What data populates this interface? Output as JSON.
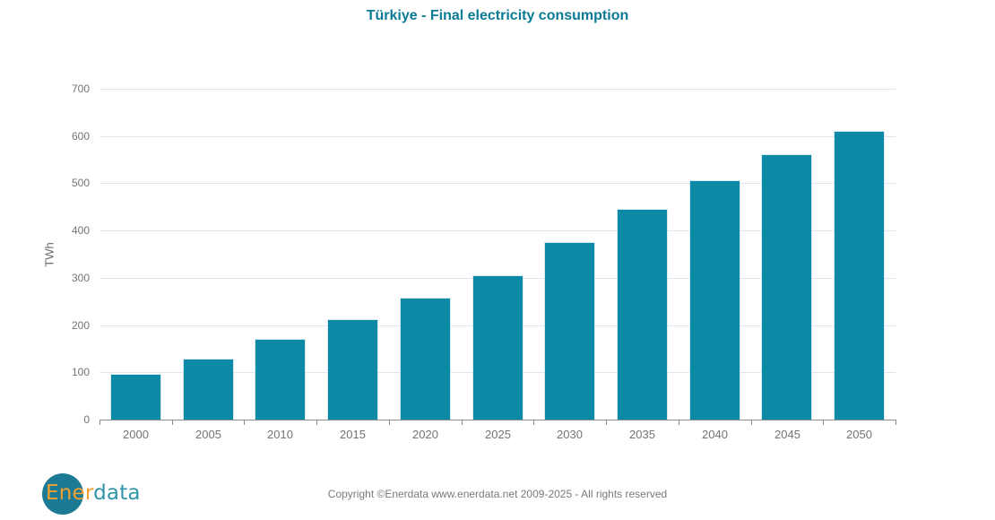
{
  "chart_data": {
    "type": "bar",
    "title": "Türkiye - Final electricity consumption",
    "categories": [
      "2000",
      "2005",
      "2010",
      "2015",
      "2020",
      "2025",
      "2030",
      "2035",
      "2040",
      "2045",
      "2050"
    ],
    "values": [
      96,
      129,
      170,
      213,
      258,
      306,
      376,
      446,
      507,
      562,
      610
    ],
    "xlabel": "",
    "ylabel": "TWh",
    "ylim": [
      0,
      700
    ],
    "ytick_interval": 100,
    "grid": true,
    "legend": "none",
    "bar_color": "#0a8aa6"
  },
  "colors": {
    "bar": "#0a8aa6",
    "bar_border": "#d9e8ee",
    "gridline": "#dfe4ee",
    "axis": "#8c8c8c",
    "tick_label": "#737378",
    "title": "#0b7a96",
    "copyright_text": "#7a7a7a",
    "logo_circle": "#1d7a94",
    "logo_ener_text": "#f0a030",
    "logo_data_text": "#2f94a8"
  },
  "icons": {
    "logo_circle": "filled-circle"
  },
  "footer": {
    "copyright": "Copyright ©Enerdata www.enerdata.net 2009-2025 - All rights reserved",
    "logo": {
      "part1": "Ener",
      "part2": "data"
    }
  }
}
